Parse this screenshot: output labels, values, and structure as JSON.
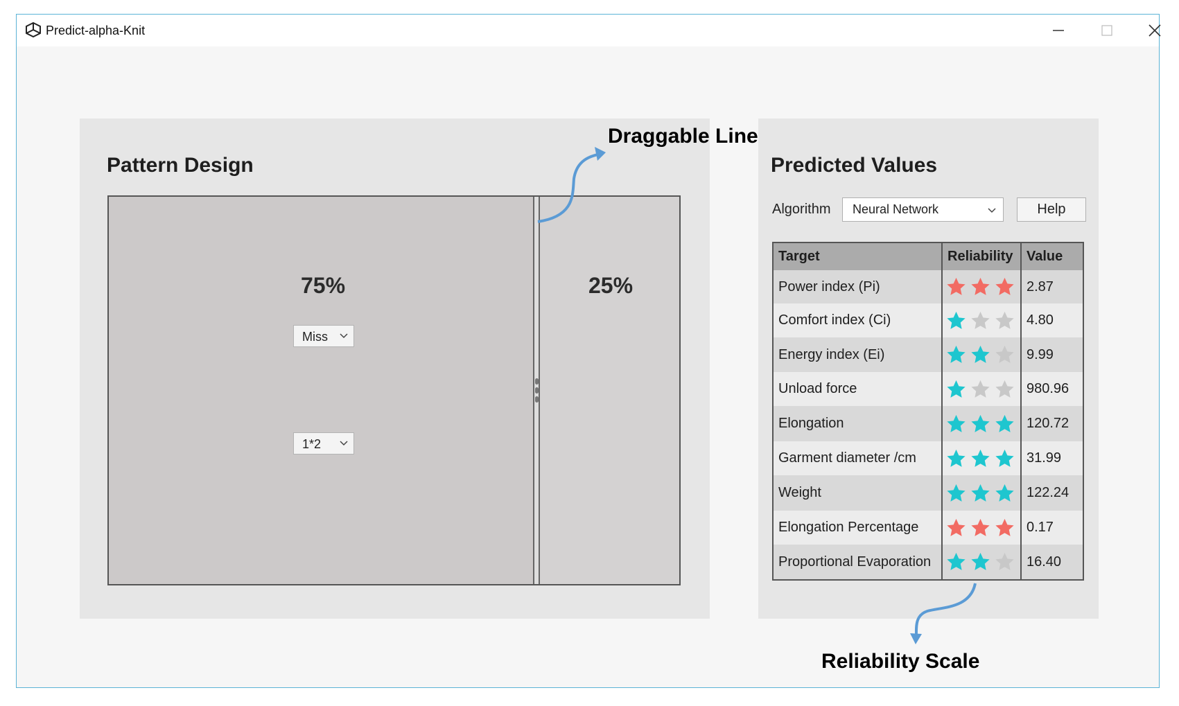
{
  "window": {
    "title": "Predict-alpha-Knit"
  },
  "pattern_panel": {
    "title": "Pattern Design",
    "left_region": {
      "percent_label": "75%",
      "stitch_value": "Miss",
      "ratio_value": "1*2"
    },
    "right_region": {
      "percent_label": "25%"
    }
  },
  "predicted_panel": {
    "title": "Predicted Values",
    "algorithm_label": "Algorithm",
    "algorithm_value": "Neural Network",
    "help_label": "Help",
    "table": {
      "headers": [
        "Target",
        "Reliability",
        "Value"
      ],
      "rows": [
        {
          "target": "Power index (Pi)",
          "rating": 3,
          "color": "#f26b63",
          "value": "2.87"
        },
        {
          "target": "Comfort index (Ci)",
          "rating": 1,
          "color": "#1ec6cf",
          "value": "4.80"
        },
        {
          "target": "Energy index (Ei)",
          "rating": 2,
          "color": "#1ec6cf",
          "value": "9.99"
        },
        {
          "target": "Unload force",
          "rating": 1,
          "color": "#1ec6cf",
          "value": "980.96"
        },
        {
          "target": "Elongation",
          "rating": 3,
          "color": "#1ec6cf",
          "value": "120.72"
        },
        {
          "target": "Garment diameter /cm",
          "rating": 3,
          "color": "#1ec6cf",
          "value": "31.99"
        },
        {
          "target": "Weight",
          "rating": 3,
          "color": "#1ec6cf",
          "value": "122.24"
        },
        {
          "target": "Elongation Percentage",
          "rating": 3,
          "color": "#f26b63",
          "value": "0.17"
        },
        {
          "target": "Proportional Evaporation",
          "rating": 2,
          "color": "#1ec6cf",
          "value": "16.40"
        }
      ],
      "empty_star_color": "#c8c8c8"
    }
  },
  "annotations": {
    "draggable_line": "Draggable Line",
    "reliability_scale": "Reliability Scale",
    "arrow_color": "#5b9bd5"
  }
}
